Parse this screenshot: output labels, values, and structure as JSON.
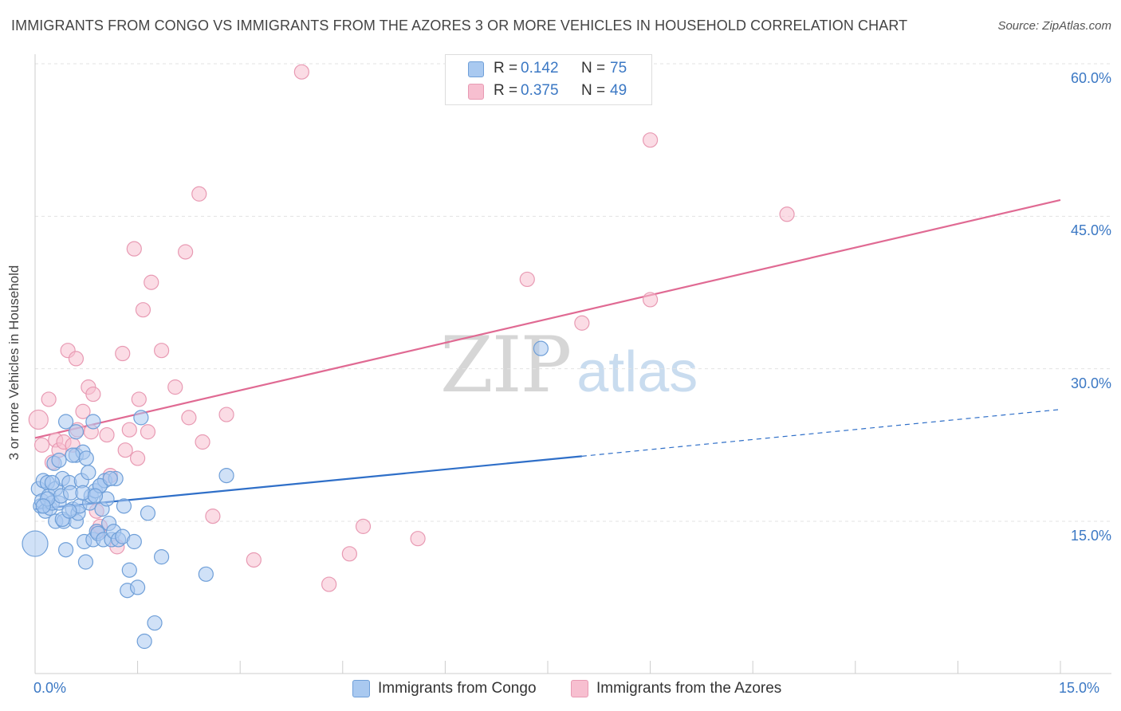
{
  "title": "IMMIGRANTS FROM CONGO VS IMMIGRANTS FROM THE AZORES 3 OR MORE VEHICLES IN HOUSEHOLD CORRELATION CHART",
  "source": "Source: ZipAtlas.com",
  "watermark": {
    "zip": "ZIP",
    "atlas": "atlas"
  },
  "legend": {
    "r_label": "R =",
    "n_label": "N =",
    "rows": [
      {
        "r": "0.142",
        "n": "75"
      },
      {
        "r": "0.375",
        "n": "49"
      }
    ]
  },
  "colors": {
    "congo_fill": "#a9c9f0",
    "congo_stroke": "#6f9fd8",
    "congo_line": "#2f6fc8",
    "azores_fill": "#f7bfd0",
    "azores_stroke": "#e89ab3",
    "azores_line": "#e06a93",
    "tick_text": "#3b78c4"
  },
  "chart_data": {
    "type": "scatter",
    "title": "IMMIGRANTS FROM CONGO VS IMMIGRANTS FROM THE AZORES 3 OR MORE VEHICLES IN HOUSEHOLD CORRELATION CHART",
    "xlabel": "",
    "ylabel": "3 or more Vehicles in Household",
    "xlim": [
      0,
      15
    ],
    "ylim": [
      0,
      60
    ],
    "x_tick_labels": [
      "0.0%",
      "15.0%"
    ],
    "y_ticks": [
      15,
      30,
      45,
      60
    ],
    "y_tick_labels": [
      "15.0%",
      "30.0%",
      "45.0%",
      "60.0%"
    ],
    "grid": true,
    "legend_position": "top-center",
    "series": [
      {
        "name": "Immigrants from Congo",
        "r": 0.142,
        "n": 75,
        "trend": {
          "x0": 0,
          "y0": 16.2,
          "x1": 8.0,
          "y1": 21.4,
          "dashed_to_x": 15,
          "dashed_to_y": 26.0
        },
        "points": [
          [
            0.0,
            12.8,
            16
          ],
          [
            0.05,
            18.2,
            9
          ],
          [
            0.08,
            16.5,
            9
          ],
          [
            0.1,
            17.0,
            9
          ],
          [
            0.12,
            19.0,
            9
          ],
          [
            0.15,
            16.0,
            9
          ],
          [
            0.18,
            18.8,
            9
          ],
          [
            0.2,
            17.5,
            9
          ],
          [
            0.22,
            16.3,
            9
          ],
          [
            0.25,
            16.8,
            9
          ],
          [
            0.28,
            20.7,
            9
          ],
          [
            0.3,
            18.2,
            9
          ],
          [
            0.3,
            15.0,
            9
          ],
          [
            0.35,
            16.8,
            9
          ],
          [
            0.38,
            17.5,
            9
          ],
          [
            0.4,
            19.2,
            9
          ],
          [
            0.42,
            15.0,
            9
          ],
          [
            0.45,
            12.2,
            9
          ],
          [
            0.5,
            18.8,
            9
          ],
          [
            0.52,
            17.8,
            9
          ],
          [
            0.55,
            16.2,
            9
          ],
          [
            0.6,
            15.0,
            9
          ],
          [
            0.6,
            21.5,
            9
          ],
          [
            0.63,
            15.8,
            9
          ],
          [
            0.65,
            16.5,
            9
          ],
          [
            0.68,
            19.0,
            9
          ],
          [
            0.7,
            21.8,
            9
          ],
          [
            0.72,
            13.0,
            9
          ],
          [
            0.74,
            11.0,
            9
          ],
          [
            0.78,
            19.8,
            9
          ],
          [
            0.8,
            16.8,
            9
          ],
          [
            0.82,
            17.5,
            9
          ],
          [
            0.85,
            13.2,
            9
          ],
          [
            0.88,
            18.0,
            9
          ],
          [
            0.9,
            14.0,
            9
          ],
          [
            0.92,
            13.8,
            9
          ],
          [
            0.95,
            18.5,
            9
          ],
          [
            0.98,
            16.2,
            9
          ],
          [
            1.0,
            13.2,
            9
          ],
          [
            1.02,
            19.0,
            9
          ],
          [
            1.05,
            17.2,
            9
          ],
          [
            1.08,
            14.8,
            9
          ],
          [
            1.12,
            13.2,
            9
          ],
          [
            1.15,
            14.0,
            9
          ],
          [
            1.18,
            19.2,
            9
          ],
          [
            1.22,
            13.2,
            9
          ],
          [
            1.28,
            13.5,
            9
          ],
          [
            1.3,
            16.5,
            9
          ],
          [
            1.35,
            8.2,
            9
          ],
          [
            1.38,
            10.2,
            9
          ],
          [
            1.45,
            13.0,
            9
          ],
          [
            1.5,
            8.5,
            9
          ],
          [
            1.55,
            25.2,
            9
          ],
          [
            1.6,
            3.2,
            9
          ],
          [
            1.65,
            15.8,
            9
          ],
          [
            1.75,
            5.0,
            9
          ],
          [
            1.85,
            11.5,
            9
          ],
          [
            2.5,
            9.8,
            9
          ],
          [
            2.8,
            19.5,
            9
          ],
          [
            7.4,
            32.0,
            9
          ],
          [
            0.35,
            21.0,
            9
          ],
          [
            0.45,
            24.8,
            9
          ],
          [
            0.55,
            21.5,
            9
          ],
          [
            0.6,
            23.8,
            9
          ],
          [
            0.75,
            21.2,
            9
          ],
          [
            0.85,
            24.8,
            9
          ],
          [
            0.95,
            18.5,
            9
          ],
          [
            1.1,
            19.2,
            9
          ],
          [
            0.25,
            18.8,
            9
          ],
          [
            0.18,
            17.2,
            9
          ],
          [
            0.12,
            16.5,
            9
          ],
          [
            0.4,
            15.2,
            9
          ],
          [
            0.5,
            16.0,
            9
          ],
          [
            0.7,
            17.8,
            9
          ],
          [
            0.88,
            17.5,
            9
          ]
        ]
      },
      {
        "name": "Immigrants from the Azores",
        "r": 0.375,
        "n": 49,
        "trend": {
          "x0": 0,
          "y0": 23.2,
          "x1": 15,
          "y1": 46.6
        },
        "points": [
          [
            0.05,
            25.0,
            12
          ],
          [
            0.1,
            22.5,
            9
          ],
          [
            0.2,
            27.0,
            9
          ],
          [
            0.25,
            20.8,
            9
          ],
          [
            0.3,
            23.0,
            9
          ],
          [
            0.35,
            22.0,
            9
          ],
          [
            0.42,
            22.8,
            9
          ],
          [
            0.48,
            31.8,
            9
          ],
          [
            0.55,
            22.5,
            9
          ],
          [
            0.6,
            31.0,
            9
          ],
          [
            0.62,
            24.0,
            9
          ],
          [
            0.7,
            25.8,
            9
          ],
          [
            0.78,
            28.2,
            9
          ],
          [
            0.82,
            23.8,
            9
          ],
          [
            0.85,
            27.5,
            9
          ],
          [
            0.9,
            16.0,
            9
          ],
          [
            0.92,
            14.0,
            9
          ],
          [
            0.95,
            14.5,
            9
          ],
          [
            1.05,
            23.5,
            9
          ],
          [
            1.1,
            19.5,
            9
          ],
          [
            1.2,
            12.5,
            9
          ],
          [
            1.28,
            31.5,
            9
          ],
          [
            1.32,
            22.0,
            9
          ],
          [
            1.38,
            24.0,
            9
          ],
          [
            1.45,
            41.8,
            9
          ],
          [
            1.5,
            21.2,
            9
          ],
          [
            1.52,
            27.0,
            9
          ],
          [
            1.58,
            35.8,
            9
          ],
          [
            1.65,
            23.8,
            9
          ],
          [
            1.7,
            38.5,
            9
          ],
          [
            1.85,
            31.8,
            9
          ],
          [
            2.05,
            28.2,
            9
          ],
          [
            2.2,
            41.5,
            9
          ],
          [
            2.25,
            25.2,
            9
          ],
          [
            2.4,
            47.2,
            9
          ],
          [
            2.45,
            22.8,
            9
          ],
          [
            2.6,
            15.5,
            9
          ],
          [
            2.8,
            25.5,
            9
          ],
          [
            3.2,
            11.2,
            9
          ],
          [
            3.9,
            59.2,
            9
          ],
          [
            4.3,
            8.8,
            9
          ],
          [
            4.6,
            11.8,
            9
          ],
          [
            4.8,
            14.5,
            9
          ],
          [
            5.6,
            13.3,
            9
          ],
          [
            7.2,
            38.8,
            9
          ],
          [
            8.0,
            34.5,
            9
          ],
          [
            9.0,
            36.8,
            9
          ],
          [
            9.0,
            52.5,
            9
          ],
          [
            11.0,
            45.2,
            9
          ]
        ]
      }
    ]
  },
  "bottom_legend": [
    "Immigrants from Congo",
    "Immigrants from the Azores"
  ]
}
